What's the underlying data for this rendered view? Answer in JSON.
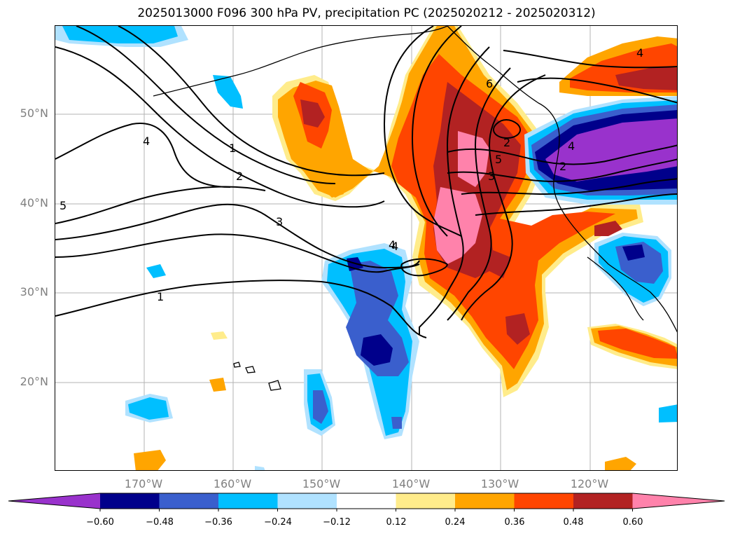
{
  "title": "2025013000 F096 300 hPa PV, precipitation PC (2025020212 - 2025020312)",
  "lat_labels": [
    "50°N",
    "40°N",
    "30°N",
    "20°N"
  ],
  "lon_labels": [
    "170°W",
    "160°W",
    "150°W",
    "140°W",
    "130°W",
    "120°W"
  ],
  "contour_labels": [
    "1",
    "2",
    "3",
    "4",
    "5",
    "6",
    "1",
    "2",
    "3",
    "4",
    "5",
    "4",
    "4",
    "2",
    "4"
  ],
  "colorbar": {
    "ticks": [
      "−0.60",
      "−0.48",
      "−0.36",
      "−0.24",
      "−0.12",
      "0.12",
      "0.24",
      "0.36",
      "0.48",
      "0.60"
    ],
    "colors": [
      "#9932CC",
      "#00008B",
      "#3A5FCD",
      "#00BFFF",
      "#B0E2FF",
      "#FFFFFF",
      "#FFEC8B",
      "#FFA500",
      "#FF4500",
      "#B22222",
      "#FF82AB"
    ]
  },
  "colors": {
    "purple": "#9932CC",
    "navy": "#00008B",
    "blue": "#3A5FCD",
    "sky": "#00BFFF",
    "lightblue": "#B0E2FF",
    "lightyellow": "#FFEC8B",
    "orange": "#FFA500",
    "redorange": "#FF4500",
    "firebrick": "#B22222",
    "pink": "#FF82AB",
    "gridline": "#B3B3B3",
    "axis_label": "#808080"
  }
}
